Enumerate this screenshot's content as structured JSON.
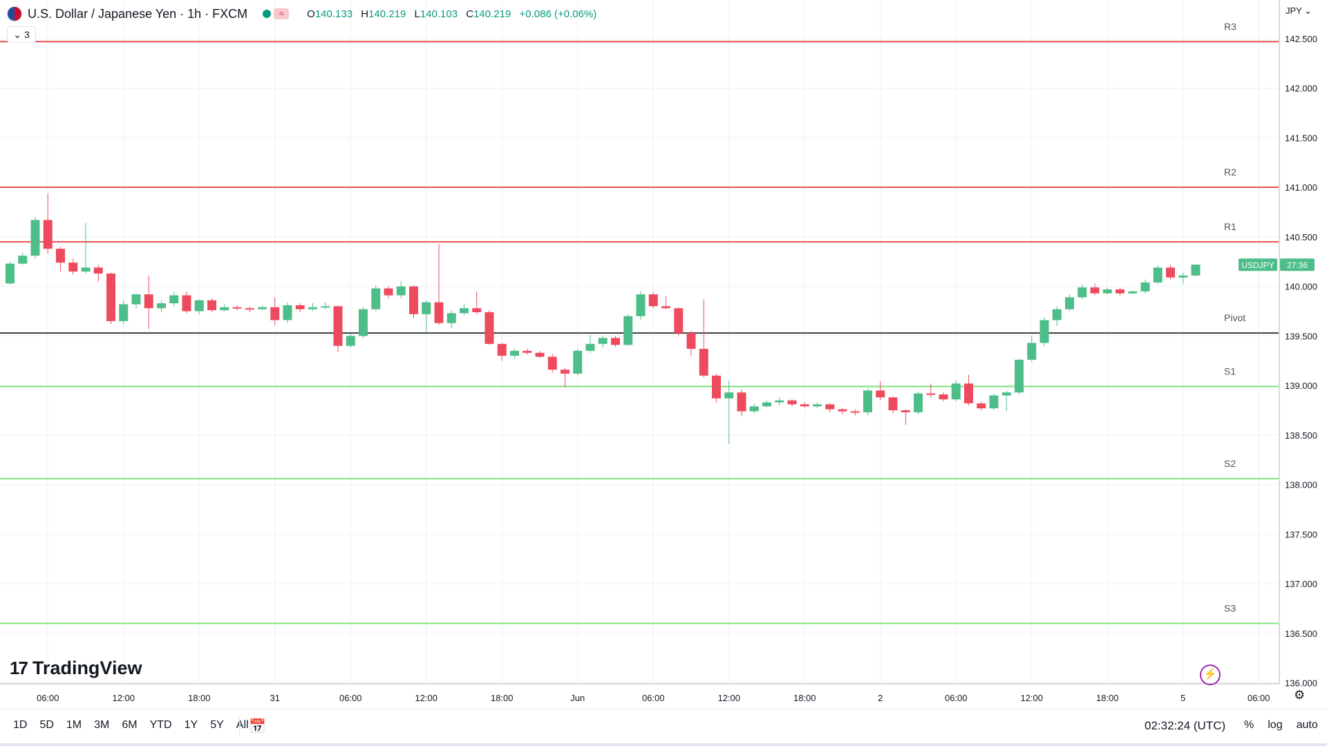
{
  "header": {
    "title": "U.S. Dollar / Japanese Yen · 1h · FXCM",
    "status_icon": "≈",
    "open_label": "O",
    "open": "140.133",
    "high_label": "H",
    "high": "140.219",
    "low_label": "L",
    "low": "140.103",
    "close_label": "C",
    "close": "140.219",
    "change": "+0.086 (+0.06%)",
    "indicators_count": "3",
    "currency": "JPY"
  },
  "colors": {
    "up": "#4dbd8a",
    "down": "#ee4a5e",
    "resistance": "#e84f4f",
    "support": "#7ee37b",
    "pivot": "#3a3a3a",
    "grid": "#eef0f4"
  },
  "chart_data": {
    "type": "candlestick",
    "symbol": "USDJPY",
    "price_label": "USDJPY",
    "countdown": "27:36",
    "last_price": 140.219,
    "ylim": [
      135.99,
      142.89
    ],
    "y_ticks": [
      "142.500",
      "142.000",
      "141.500",
      "141.000",
      "140.500",
      "140.000",
      "139.500",
      "139.000",
      "138.500",
      "138.000",
      "137.500",
      "137.000",
      "136.500",
      "136.000"
    ],
    "x_ticks": [
      {
        "label": "06:00",
        "i": 3
      },
      {
        "label": "12:00",
        "i": 9
      },
      {
        "label": "18:00",
        "i": 15
      },
      {
        "label": "31",
        "i": 21
      },
      {
        "label": "06:00",
        "i": 27
      },
      {
        "label": "12:00",
        "i": 33
      },
      {
        "label": "18:00",
        "i": 39
      },
      {
        "label": "Jun",
        "i": 45
      },
      {
        "label": "06:00",
        "i": 51
      },
      {
        "label": "12:00",
        "i": 57
      },
      {
        "label": "18:00",
        "i": 63
      },
      {
        "label": "2",
        "i": 69
      },
      {
        "label": "06:00",
        "i": 75
      },
      {
        "label": "12:00",
        "i": 81
      },
      {
        "label": "18:00",
        "i": 87
      },
      {
        "label": "5",
        "i": 93
      },
      {
        "label": "06:00",
        "i": 99
      }
    ],
    "levels": [
      {
        "name": "R3",
        "value": 142.47,
        "kind": "resistance"
      },
      {
        "name": "R2",
        "value": 141.0,
        "kind": "resistance"
      },
      {
        "name": "R1",
        "value": 140.45,
        "kind": "resistance"
      },
      {
        "name": "Pivot",
        "value": 139.53,
        "kind": "pivot"
      },
      {
        "name": "S1",
        "value": 138.99,
        "kind": "support"
      },
      {
        "name": "S2",
        "value": 138.06,
        "kind": "support"
      },
      {
        "name": "S3",
        "value": 136.6,
        "kind": "support"
      }
    ],
    "candles": [
      [
        140.03,
        140.23,
        140.25,
        140.02
      ],
      [
        140.23,
        140.31,
        140.34,
        140.22
      ],
      [
        140.31,
        140.67,
        140.7,
        140.28
      ],
      [
        140.67,
        140.38,
        140.94,
        140.33
      ],
      [
        140.38,
        140.24,
        140.4,
        140.15
      ],
      [
        140.24,
        140.15,
        140.28,
        140.12
      ],
      [
        140.15,
        140.19,
        140.64,
        140.13
      ],
      [
        140.19,
        140.13,
        140.22,
        140.05
      ],
      [
        140.13,
        139.65,
        140.14,
        139.62
      ],
      [
        139.65,
        139.82,
        139.86,
        139.62
      ],
      [
        139.82,
        139.92,
        139.93,
        139.78
      ],
      [
        139.92,
        139.78,
        140.11,
        139.57
      ],
      [
        139.78,
        139.83,
        139.86,
        139.74
      ],
      [
        139.83,
        139.91,
        139.95,
        139.8
      ],
      [
        139.91,
        139.75,
        139.95,
        139.73
      ],
      [
        139.75,
        139.86,
        139.87,
        139.72
      ],
      [
        139.86,
        139.76,
        139.88,
        139.74
      ],
      [
        139.76,
        139.79,
        139.82,
        139.75
      ],
      [
        139.79,
        139.78,
        139.81,
        139.76
      ],
      [
        139.78,
        139.77,
        139.8,
        139.74
      ],
      [
        139.77,
        139.79,
        139.81,
        139.76
      ],
      [
        139.79,
        139.66,
        139.89,
        139.61
      ],
      [
        139.66,
        139.81,
        139.84,
        139.63
      ],
      [
        139.81,
        139.77,
        139.83,
        139.74
      ],
      [
        139.77,
        139.79,
        139.83,
        139.75
      ],
      [
        139.79,
        139.8,
        139.84,
        139.77
      ],
      [
        139.8,
        139.4,
        139.81,
        139.34
      ],
      [
        139.4,
        139.5,
        139.52,
        139.38
      ],
      [
        139.5,
        139.77,
        139.79,
        139.48
      ],
      [
        139.77,
        139.98,
        140.01,
        139.75
      ],
      [
        139.98,
        139.91,
        140.0,
        139.88
      ],
      [
        139.91,
        140.0,
        140.05,
        139.88
      ],
      [
        140.0,
        139.72,
        140.01,
        139.68
      ],
      [
        139.72,
        139.84,
        139.86,
        139.54
      ],
      [
        139.84,
        139.63,
        140.43,
        139.61
      ],
      [
        139.63,
        139.73,
        139.76,
        139.58
      ],
      [
        139.73,
        139.78,
        139.82,
        139.71
      ],
      [
        139.78,
        139.74,
        139.95,
        139.72
      ],
      [
        139.74,
        139.42,
        139.76,
        139.41
      ],
      [
        139.42,
        139.3,
        139.43,
        139.25
      ],
      [
        139.3,
        139.35,
        139.37,
        139.27
      ],
      [
        139.35,
        139.33,
        139.37,
        139.31
      ],
      [
        139.33,
        139.29,
        139.35,
        139.28
      ],
      [
        139.29,
        139.16,
        139.32,
        139.13
      ],
      [
        139.16,
        139.12,
        139.18,
        138.98
      ],
      [
        139.12,
        139.35,
        139.37,
        139.1
      ],
      [
        139.35,
        139.42,
        139.51,
        139.33
      ],
      [
        139.42,
        139.48,
        139.5,
        139.38
      ],
      [
        139.48,
        139.41,
        139.5,
        139.39
      ],
      [
        139.41,
        139.7,
        139.72,
        139.4
      ],
      [
        139.7,
        139.92,
        139.95,
        139.66
      ],
      [
        139.92,
        139.8,
        139.94,
        139.78
      ],
      [
        139.8,
        139.78,
        139.9,
        139.77
      ],
      [
        139.78,
        139.53,
        139.79,
        139.5
      ],
      [
        139.53,
        139.37,
        139.55,
        139.3
      ],
      [
        139.37,
        139.1,
        139.87,
        139.08
      ],
      [
        139.1,
        138.87,
        139.12,
        138.83
      ],
      [
        138.87,
        138.93,
        139.05,
        138.41
      ],
      [
        138.93,
        138.74,
        138.96,
        138.69
      ],
      [
        138.74,
        138.79,
        138.82,
        138.72
      ],
      [
        138.79,
        138.83,
        138.85,
        138.78
      ],
      [
        138.83,
        138.85,
        138.88,
        138.8
      ],
      [
        138.85,
        138.81,
        138.86,
        138.79
      ],
      [
        138.81,
        138.79,
        138.83,
        138.77
      ],
      [
        138.79,
        138.81,
        138.83,
        138.77
      ],
      [
        138.81,
        138.76,
        138.82,
        138.73
      ],
      [
        138.76,
        138.74,
        138.77,
        138.71
      ],
      [
        138.74,
        138.73,
        138.76,
        138.7
      ],
      [
        138.73,
        138.95,
        138.97,
        138.7
      ],
      [
        138.95,
        138.88,
        139.04,
        138.85
      ],
      [
        138.88,
        138.75,
        138.89,
        138.72
      ],
      [
        138.75,
        138.73,
        138.76,
        138.6
      ],
      [
        138.73,
        138.92,
        138.94,
        138.71
      ],
      [
        138.92,
        138.91,
        139.02,
        138.88
      ],
      [
        138.91,
        138.86,
        138.93,
        138.84
      ],
      [
        138.86,
        139.02,
        139.05,
        138.84
      ],
      [
        139.02,
        138.82,
        139.11,
        138.8
      ],
      [
        138.82,
        138.77,
        138.84,
        138.75
      ],
      [
        138.77,
        138.9,
        138.92,
        138.75
      ],
      [
        138.9,
        138.93,
        138.95,
        138.74
      ],
      [
        138.93,
        139.26,
        139.27,
        138.91
      ],
      [
        139.26,
        139.43,
        139.5,
        139.24
      ],
      [
        139.43,
        139.66,
        139.69,
        139.4
      ],
      [
        139.66,
        139.77,
        139.8,
        139.6
      ],
      [
        139.77,
        139.89,
        139.92,
        139.75
      ],
      [
        139.89,
        139.99,
        140.02,
        139.87
      ],
      [
        139.99,
        139.93,
        140.03,
        139.91
      ],
      [
        139.93,
        139.97,
        139.99,
        139.92
      ],
      [
        139.97,
        139.93,
        139.99,
        139.91
      ],
      [
        139.93,
        139.95,
        139.96,
        139.92
      ],
      [
        139.95,
        140.04,
        140.07,
        139.93
      ],
      [
        140.04,
        140.19,
        140.21,
        140.02
      ],
      [
        140.19,
        140.09,
        140.22,
        140.07
      ],
      [
        140.09,
        140.11,
        140.14,
        140.02
      ],
      [
        140.11,
        140.22,
        140.22,
        140.1
      ]
    ]
  },
  "branding": {
    "logo_mark": "17",
    "logo_text": "TradingView"
  },
  "bottom_bar": {
    "ranges": [
      "1D",
      "5D",
      "1M",
      "3M",
      "6M",
      "YTD",
      "1Y",
      "5Y",
      "All"
    ],
    "clock": "02:32:24 (UTC)",
    "percent": "%",
    "log": "log",
    "auto": "auto"
  }
}
